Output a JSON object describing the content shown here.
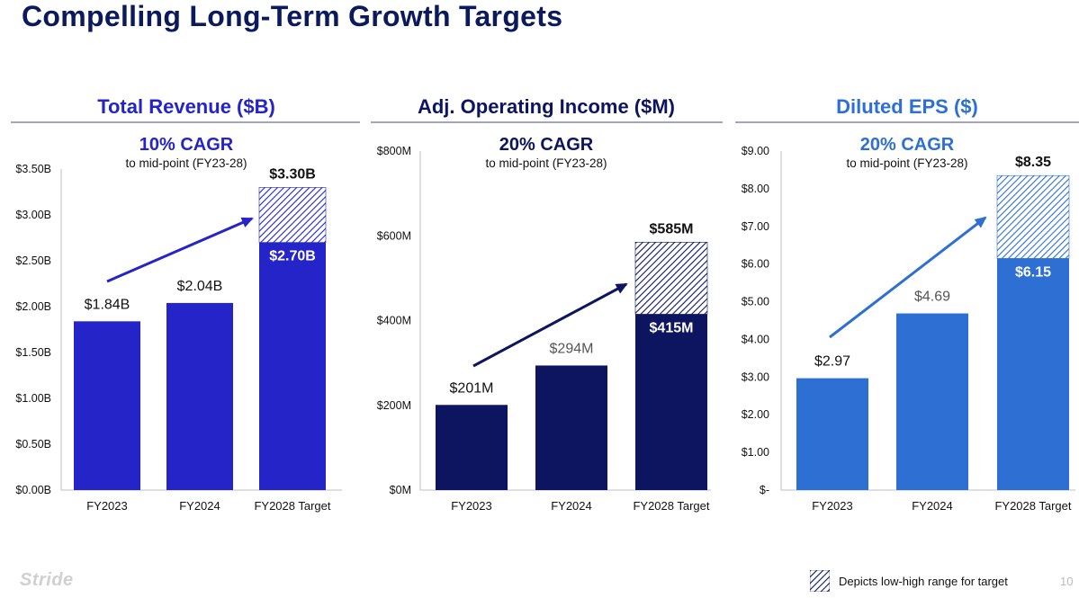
{
  "title": "Compelling Long-Term Growth Targets",
  "logo": "Stride",
  "page_number": "10",
  "legend_text": "Depicts low-high range for target",
  "chart_data": [
    {
      "type": "bar",
      "title": "Total Revenue ($B)",
      "title_color": "#2424c9",
      "cagr": "10% CAGR",
      "cagr_color": "#2424c9",
      "cagr_sub": "to mid-point (FY23-28)",
      "bar_color": "#2424c9",
      "arrow_color": "#2424c9",
      "categories": [
        "FY2023",
        "FY2024",
        "FY2028 Target"
      ],
      "values": [
        1.84,
        2.04,
        2.7
      ],
      "target_high": 3.3,
      "value_labels": [
        "$1.84B",
        "$2.04B",
        "$2.70B"
      ],
      "target_high_label": "$3.30B",
      "ylim": [
        0,
        3.5
      ],
      "yticks": [
        0,
        0.5,
        1.0,
        1.5,
        2.0,
        2.5,
        3.0,
        3.5
      ],
      "ytick_labels": [
        "$0.00B",
        "$0.50B",
        "$1.00B",
        "$1.50B",
        "$2.00B",
        "$2.50B",
        "$3.00B",
        "$3.50B"
      ]
    },
    {
      "type": "bar",
      "title": "Adj. Operating Income ($M)",
      "title_color": "#0d1560",
      "cagr": "20% CAGR",
      "cagr_color": "#0d1560",
      "cagr_sub": "to mid-point (FY23-28)",
      "bar_color": "#0d1560",
      "arrow_color": "#0d1560",
      "categories": [
        "FY2023",
        "FY2024",
        "FY2028 Target"
      ],
      "values": [
        201,
        294,
        415
      ],
      "target_high": 585,
      "value_labels": [
        "$201M",
        "$294M",
        "$415M"
      ],
      "target_high_label": "$585M",
      "ylim": [
        0,
        800
      ],
      "yticks": [
        0,
        200,
        400,
        600,
        800
      ],
      "ytick_labels": [
        "$0M",
        "$200M",
        "$400M",
        "$600M",
        "$800M"
      ]
    },
    {
      "type": "bar",
      "title": "Diluted EPS ($)",
      "title_color": "#2e6fd4",
      "cagr": "20% CAGR",
      "cagr_color": "#2e6fd4",
      "cagr_sub": "to mid-point (FY23-28)",
      "bar_color": "#2e6fd4",
      "arrow_color": "#2e6fd4",
      "categories": [
        "FY2023",
        "FY2024",
        "FY2028 Target"
      ],
      "values": [
        2.97,
        4.69,
        6.15
      ],
      "target_high": 8.35,
      "value_labels": [
        "$2.97",
        "$4.69",
        "$6.15"
      ],
      "target_high_label": "$8.35",
      "ylim": [
        0,
        9
      ],
      "yticks": [
        0,
        1,
        2,
        3,
        4,
        5,
        6,
        7,
        8,
        9
      ],
      "ytick_labels": [
        "$-",
        "$1.00",
        "$2.00",
        "$3.00",
        "$4.00",
        "$5.00",
        "$6.00",
        "$7.00",
        "$8.00",
        "$9.00"
      ]
    }
  ]
}
